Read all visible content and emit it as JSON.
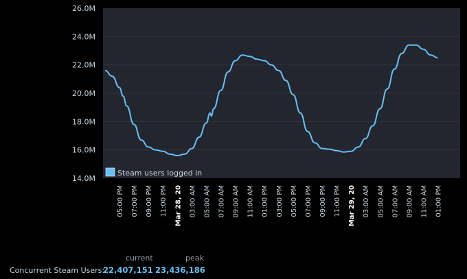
{
  "chart_data": {
    "type": "line",
    "ylabel": "",
    "xlabel": "",
    "ylim": [
      14.0,
      26.0
    ],
    "y_ticks": [
      "26.0M",
      "24.0M",
      "22.0M",
      "20.0M",
      "18.0M",
      "16.0M",
      "14.0M"
    ],
    "x_ticks": [
      {
        "label": "05:00 PM",
        "major": false
      },
      {
        "label": "07:00 PM",
        "major": false
      },
      {
        "label": "09:00 PM",
        "major": false
      },
      {
        "label": "11:00 PM",
        "major": false
      },
      {
        "label": "Mar 28, 20",
        "major": true
      },
      {
        "label": "03:00 AM",
        "major": false
      },
      {
        "label": "05:00 AM",
        "major": false
      },
      {
        "label": "07:00 AM",
        "major": false
      },
      {
        "label": "09:00 AM",
        "major": false
      },
      {
        "label": "11:00 AM",
        "major": false
      },
      {
        "label": "01:00 PM",
        "major": false
      },
      {
        "label": "03:00 PM",
        "major": false
      },
      {
        "label": "05:00 PM",
        "major": false
      },
      {
        "label": "07:00 PM",
        "major": false
      },
      {
        "label": "09:00 PM",
        "major": false
      },
      {
        "label": "11:00 PM",
        "major": false
      },
      {
        "label": "Mar 29, 20",
        "major": true
      },
      {
        "label": "03:00 AM",
        "major": false
      },
      {
        "label": "05:00 AM",
        "major": false
      },
      {
        "label": "07:00 AM",
        "major": false
      },
      {
        "label": "09:00 AM",
        "major": false
      },
      {
        "label": "11:00 AM",
        "major": false
      },
      {
        "label": "01:00 PM",
        "major": false
      }
    ],
    "x_start_hours": 14.0,
    "x_tick_first_hours": 17.0,
    "x_tick_step_hours": 2.0,
    "x_end_hours": 51.5,
    "series": [
      {
        "name": "Steam users logged in",
        "color": "#66c0f4",
        "points": [
          [
            14.0,
            21.8
          ],
          [
            15.0,
            21.6
          ],
          [
            16.0,
            21.2
          ],
          [
            17.0,
            20.4
          ],
          [
            17.5,
            19.8
          ],
          [
            18.0,
            19.1
          ],
          [
            19.0,
            17.8
          ],
          [
            20.0,
            16.7
          ],
          [
            21.0,
            16.2
          ],
          [
            22.0,
            16.0
          ],
          [
            23.0,
            15.9
          ],
          [
            24.0,
            15.7
          ],
          [
            25.0,
            15.6
          ],
          [
            26.0,
            15.7
          ],
          [
            27.0,
            16.1
          ],
          [
            28.0,
            16.9
          ],
          [
            29.0,
            17.9
          ],
          [
            29.5,
            18.6
          ],
          [
            29.7,
            18.4
          ],
          [
            30.0,
            18.9
          ],
          [
            31.0,
            20.2
          ],
          [
            32.0,
            21.5
          ],
          [
            33.0,
            22.3
          ],
          [
            34.0,
            22.7
          ],
          [
            35.0,
            22.6
          ],
          [
            36.0,
            22.4
          ],
          [
            37.0,
            22.3
          ],
          [
            38.0,
            22.0
          ],
          [
            39.0,
            21.6
          ],
          [
            40.0,
            20.9
          ],
          [
            41.0,
            19.9
          ],
          [
            42.0,
            18.6
          ],
          [
            43.0,
            17.3
          ],
          [
            44.0,
            16.5
          ],
          [
            45.0,
            16.1
          ],
          [
            46.0,
            16.05
          ],
          [
            47.0,
            15.95
          ],
          [
            48.0,
            15.85
          ],
          [
            49.0,
            15.9
          ],
          [
            50.0,
            16.2
          ],
          [
            51.0,
            16.8
          ],
          [
            52.0,
            17.7
          ],
          [
            53.0,
            18.9
          ],
          [
            54.0,
            20.3
          ],
          [
            55.0,
            21.7
          ],
          [
            56.0,
            22.8
          ],
          [
            57.0,
            23.4
          ],
          [
            58.0,
            23.4
          ],
          [
            59.0,
            23.1
          ],
          [
            60.0,
            22.7
          ],
          [
            61.0,
            22.5
          ]
        ]
      }
    ],
    "grid": true,
    "legend_position": "bottom-left"
  },
  "stats": {
    "header_current": "current",
    "header_peak": "peak",
    "label": "Concurrent Steam Users:",
    "current_value": "22,407,151",
    "peak_value": "23,436,186"
  }
}
